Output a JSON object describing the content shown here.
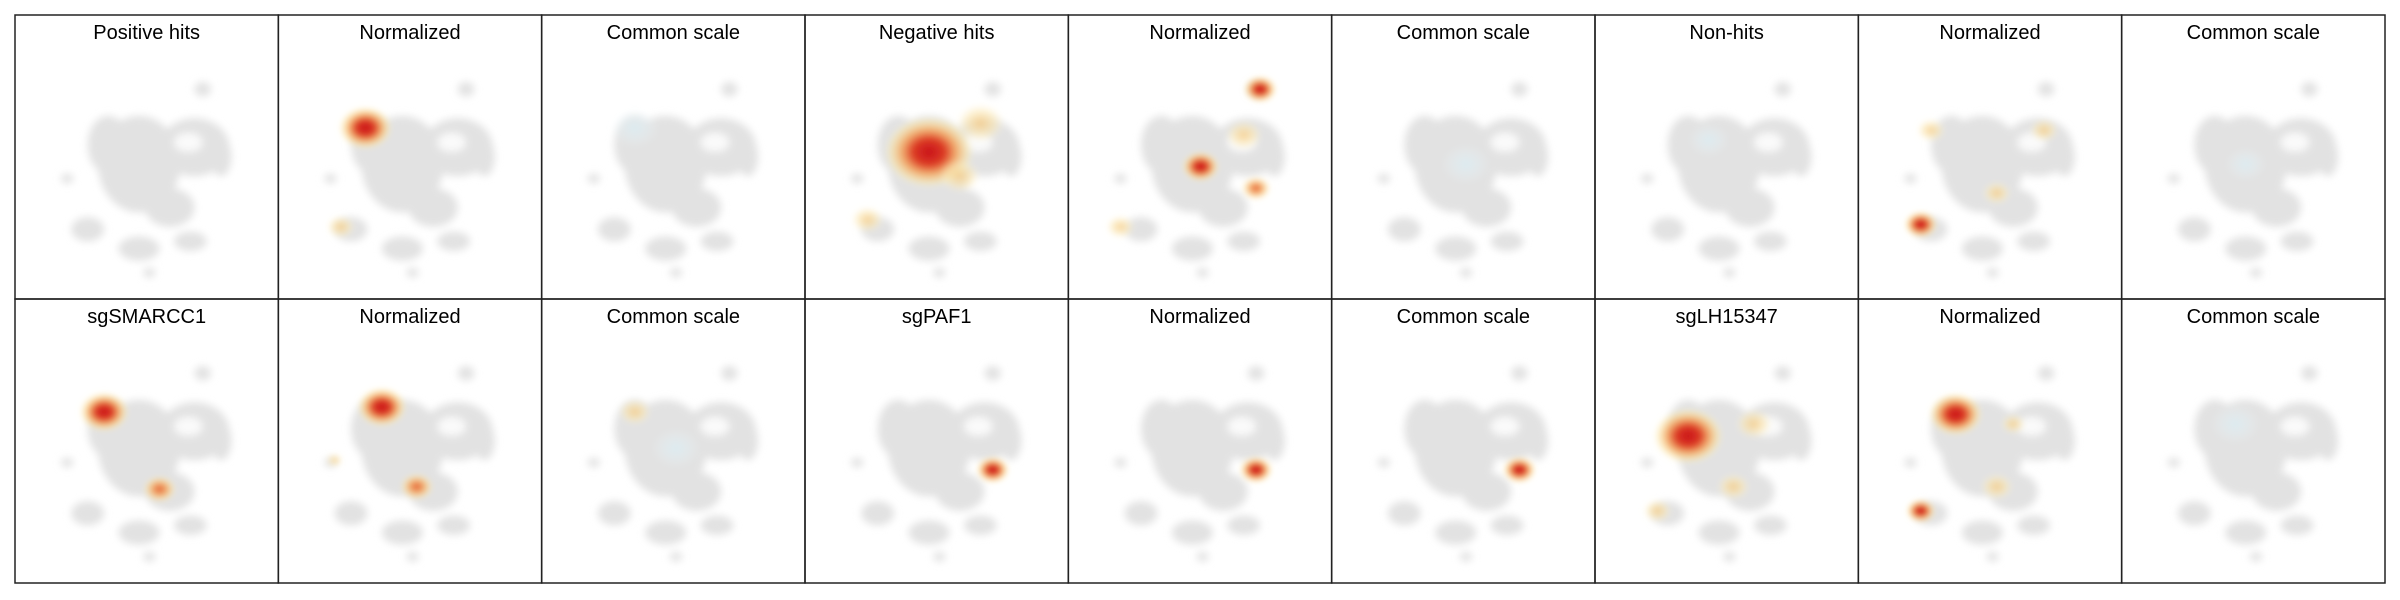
{
  "titles": [
    [
      "Positive hits",
      "Normalized",
      "Common scale",
      "Negative hits",
      "Normalized",
      "Common scale",
      "Non-hits",
      "Normalized",
      "Common scale"
    ],
    [
      "sgSMARCC1",
      "Normalized",
      "Common scale",
      "sgPAF1",
      "Normalized",
      "Common scale",
      "sgLH15347",
      "Normalized",
      "Common scale"
    ]
  ]
}
